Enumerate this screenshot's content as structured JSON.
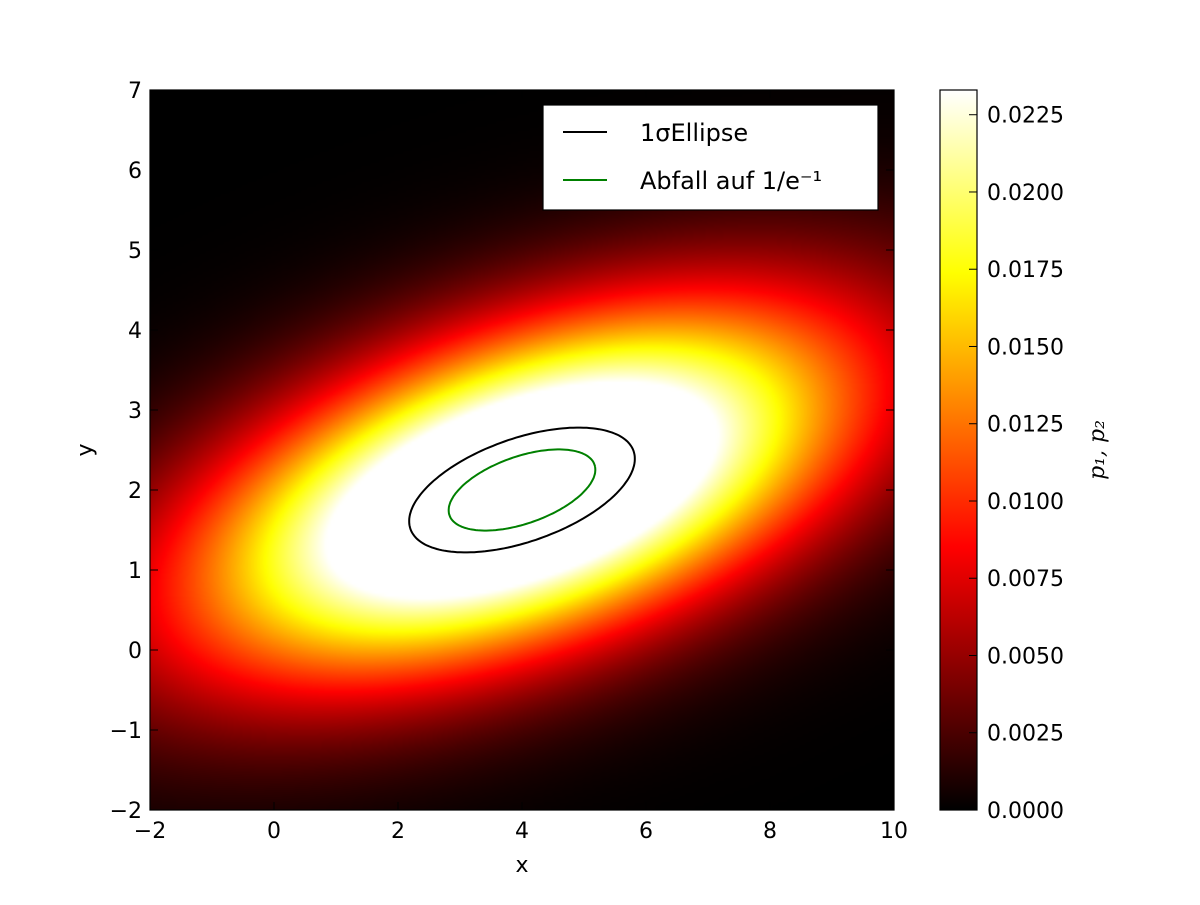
{
  "chart_data": {
    "type": "heatmap",
    "title": "",
    "xlabel": "x",
    "ylabel": "y",
    "xlim": [
      -2,
      10
    ],
    "ylim": [
      -2,
      7
    ],
    "x_ticks": [
      -2,
      0,
      2,
      4,
      6,
      8,
      10
    ],
    "x_tick_labels": [
      "−2",
      "0",
      "2",
      "4",
      "6",
      "8",
      "10"
    ],
    "y_ticks": [
      -2,
      -1,
      0,
      1,
      2,
      3,
      4,
      5,
      6,
      7
    ],
    "y_tick_labels": [
      "−2",
      "−1",
      "0",
      "1",
      "2",
      "3",
      "4",
      "5",
      "6",
      "7"
    ],
    "colormap": "hot",
    "colorbar": {
      "label": "p₁, p₂",
      "range": [
        0.0,
        0.0233
      ],
      "ticks": [
        0.0,
        0.0025,
        0.005,
        0.0075,
        0.01,
        0.0125,
        0.015,
        0.0175,
        0.02,
        0.0225
      ],
      "tick_labels": [
        "0.0000",
        "0.0025",
        "0.0050",
        "0.0075",
        "0.0100",
        "0.0125",
        "0.0150",
        "0.0175",
        "0.0200",
        "0.0225"
      ]
    },
    "distribution": {
      "mean": [
        4.0,
        2.0
      ],
      "sigma_x": 3.5,
      "sigma_y": 1.5,
      "correlation": 0.5
    },
    "legend_position": "upper right",
    "series": [
      {
        "name": "1σEllipse",
        "color": "#000000",
        "sigma_level": 1.0
      },
      {
        "name": "Abfall auf 1/e⁻¹",
        "color": "#008000",
        "sigma_level": 0.65
      }
    ]
  }
}
